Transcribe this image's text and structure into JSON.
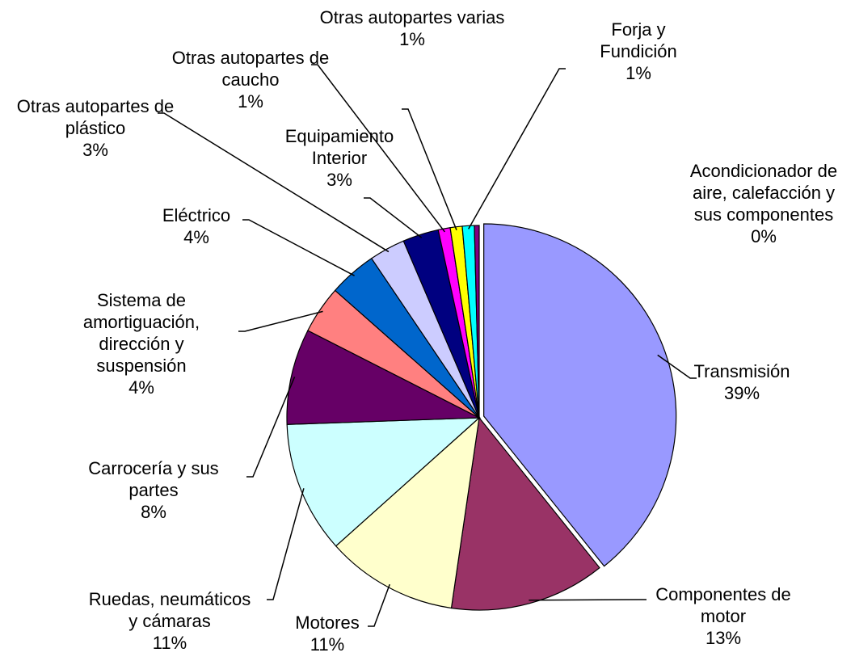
{
  "chart_data": {
    "type": "pie",
    "categories": [
      "Transmisión",
      "Componentes de motor",
      "Motores",
      "Ruedas, neumáticos y cámaras",
      "Carrocería y sus partes",
      "Sistema de amortiguación, dirección y suspensión",
      "Eléctrico",
      "Otras autopartes de plástico",
      "Equipamiento Interior",
      "Otras autopartes de caucho",
      "Otras autopartes varias",
      "Forja y Fundición",
      "Acondicionador de aire, calefacción y sus componentes"
    ],
    "values": [
      39,
      13,
      11,
      11,
      8,
      4,
      4,
      3,
      3,
      1,
      1,
      1,
      0.4
    ],
    "value_labels": [
      "39%",
      "13%",
      "11%",
      "11%",
      "8%",
      "4%",
      "4%",
      "3%",
      "3%",
      "1%",
      "1%",
      "1%",
      "0%"
    ],
    "colors": [
      "#9999ff",
      "#993366",
      "#ffffcc",
      "#ccffff",
      "#660066",
      "#ff8080",
      "#0066cc",
      "#ccccff",
      "#000080",
      "#ff00ff",
      "#ffff00",
      "#00ffff",
      "#800080"
    ]
  }
}
